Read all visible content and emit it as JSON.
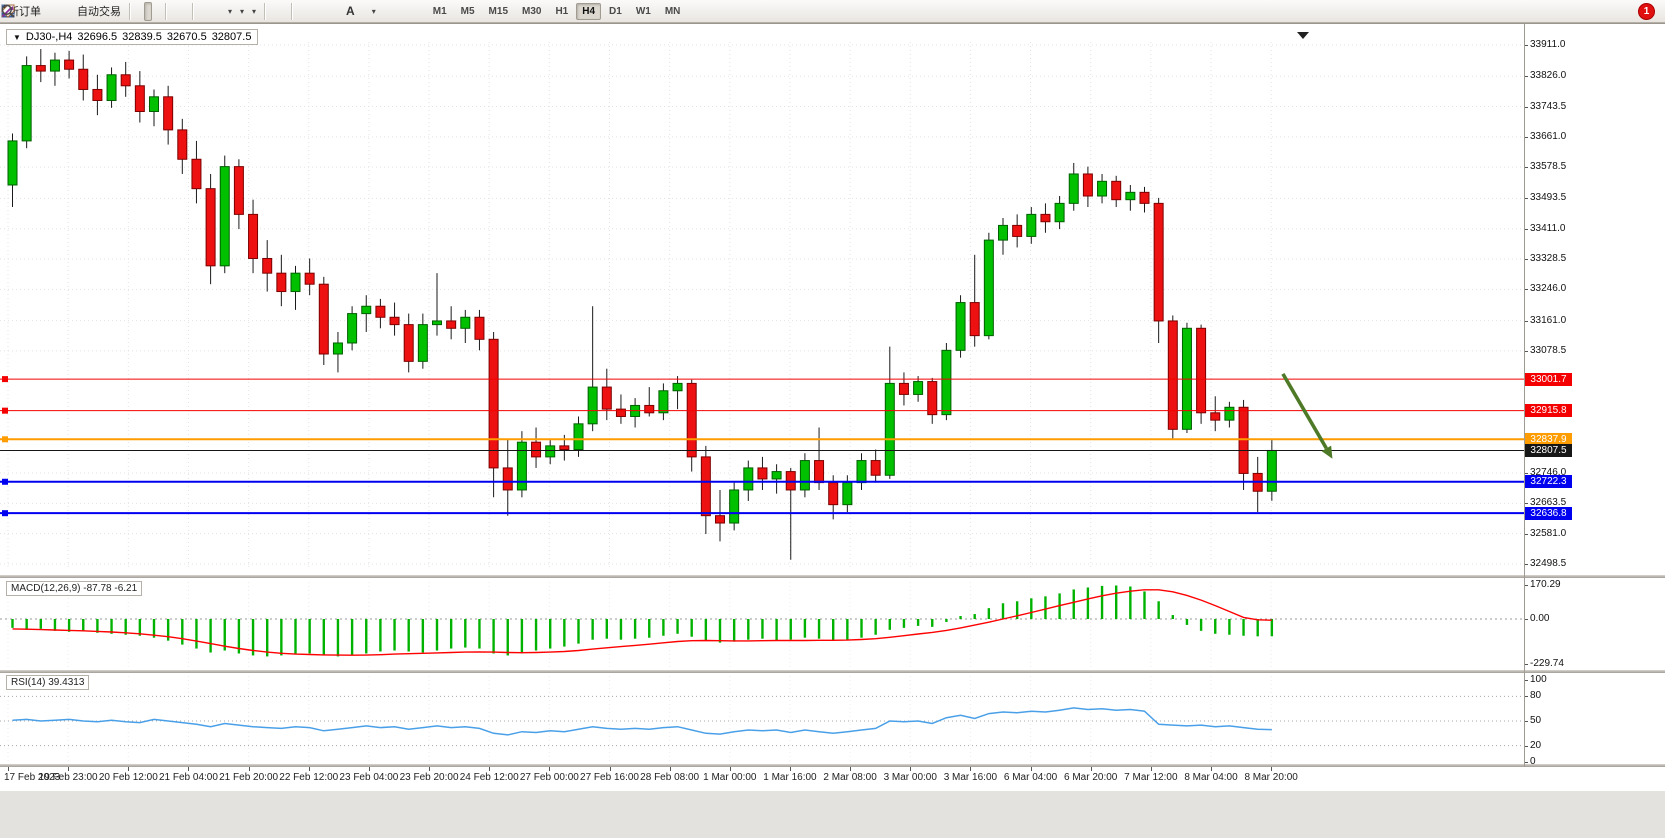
{
  "toolbar": {
    "new_order_label": "新订单",
    "auto_trading_label": "自动交易",
    "text_tool_label": "A",
    "timeframes": [
      "M1",
      "M5",
      "M15",
      "M30",
      "H1",
      "H4",
      "D1",
      "W1",
      "MN"
    ],
    "active_timeframe": "H4",
    "notification_count": "1"
  },
  "symbol_bar": {
    "symbol": "DJ30-,H4",
    "open": "32696.5",
    "high": "32839.5",
    "low": "32670.5",
    "close": "32807.5"
  },
  "price_axis": {
    "tick_labels": [
      "33911.0",
      "33826.0",
      "33743.5",
      "33661.0",
      "33578.5",
      "33493.5",
      "33411.0",
      "33328.5",
      "33246.0",
      "33161.0",
      "33078.5",
      "32746.0",
      "32663.5",
      "32581.0",
      "32498.5"
    ],
    "max_price": 33911.0,
    "min_price": 32498.5
  },
  "levels": {
    "hlines": [
      {
        "price": 33001.7,
        "label": "33001.7",
        "color": "#f40000",
        "width": 1
      },
      {
        "price": 32915.8,
        "label": "32915.8",
        "color": "#f40000",
        "width": 1
      },
      {
        "price": 32837.9,
        "label": "32837.9",
        "color": "#ff9c00",
        "width": 2
      },
      {
        "price": 32722.3,
        "label": "32722.3",
        "color": "#0000f0",
        "width": 2
      },
      {
        "price": 32636.8,
        "label": "32636.8",
        "color": "#0000f0",
        "width": 2
      }
    ],
    "current_price": {
      "price": 32807.5,
      "label": "32807.5",
      "color": "#161616"
    }
  },
  "annotation": {
    "arrow_color": "#4e7a27",
    "from": {
      "bar": 90.1,
      "price": 33016
    },
    "to": {
      "bar": 93.6,
      "price": 32785
    }
  },
  "chart_data": {
    "type": "candlestick",
    "symbol": "DJ30-",
    "timeframe": "H4",
    "colors": {
      "bull": "#00c000",
      "bear": "#ee1111",
      "wick": "#1a1a1a"
    },
    "time_labels": [
      "17 Feb 2023",
      "19 Feb 23:00",
      "20 Feb 12:00",
      "21 Feb 04:00",
      "21 Feb 20:00",
      "22 Feb 12:00",
      "23 Feb 04:00",
      "23 Feb 20:00",
      "24 Feb 12:00",
      "27 Feb 00:00",
      "27 Feb 16:00",
      "28 Feb 08:00",
      "1 Mar 00:00",
      "1 Mar 16:00",
      "2 Mar 08:00",
      "3 Mar 00:00",
      "3 Mar 16:00",
      "6 Mar 04:00",
      "6 Mar 20:00",
      "7 Mar 12:00",
      "8 Mar 04:00",
      "8 Mar 20:00"
    ],
    "candles_ohlc": [
      [
        33530,
        33670,
        33470,
        33650
      ],
      [
        33650,
        33880,
        33630,
        33855
      ],
      [
        33855,
        33900,
        33810,
        33840
      ],
      [
        33840,
        33890,
        33800,
        33870
      ],
      [
        33870,
        33895,
        33820,
        33845
      ],
      [
        33845,
        33885,
        33760,
        33790
      ],
      [
        33790,
        33830,
        33720,
        33760
      ],
      [
        33760,
        33850,
        33740,
        33830
      ],
      [
        33830,
        33865,
        33770,
        33800
      ],
      [
        33800,
        33840,
        33700,
        33730
      ],
      [
        33730,
        33790,
        33690,
        33770
      ],
      [
        33770,
        33800,
        33640,
        33680
      ],
      [
        33680,
        33710,
        33560,
        33600
      ],
      [
        33600,
        33650,
        33480,
        33520
      ],
      [
        33520,
        33560,
        33260,
        33310
      ],
      [
        33310,
        33610,
        33290,
        33580
      ],
      [
        33580,
        33600,
        33410,
        33450
      ],
      [
        33450,
        33490,
        33290,
        33330
      ],
      [
        33330,
        33380,
        33240,
        33290
      ],
      [
        33290,
        33340,
        33200,
        33240
      ],
      [
        33240,
        33310,
        33190,
        33290
      ],
      [
        33290,
        33330,
        33230,
        33260
      ],
      [
        33260,
        33280,
        33040,
        33070
      ],
      [
        33070,
        33130,
        33020,
        33100
      ],
      [
        33100,
        33200,
        33080,
        33180
      ],
      [
        33180,
        33230,
        33130,
        33200
      ],
      [
        33200,
        33220,
        33140,
        33170
      ],
      [
        33170,
        33210,
        33120,
        33150
      ],
      [
        33150,
        33180,
        33020,
        33050
      ],
      [
        33050,
        33180,
        33030,
        33150
      ],
      [
        33150,
        33290,
        33120,
        33160
      ],
      [
        33160,
        33200,
        33110,
        33140
      ],
      [
        33140,
        33190,
        33100,
        33170
      ],
      [
        33170,
        33190,
        33080,
        33110
      ],
      [
        33110,
        33130,
        32680,
        32760
      ],
      [
        32760,
        32840,
        32630,
        32700
      ],
      [
        32700,
        32860,
        32680,
        32830
      ],
      [
        32830,
        32870,
        32760,
        32790
      ],
      [
        32790,
        32840,
        32770,
        32820
      ],
      [
        32820,
        32850,
        32780,
        32810
      ],
      [
        32810,
        32900,
        32790,
        32880
      ],
      [
        32880,
        33200,
        32860,
        32980
      ],
      [
        32980,
        33030,
        32890,
        32920
      ],
      [
        32920,
        32960,
        32880,
        32900
      ],
      [
        32900,
        32950,
        32870,
        32930
      ],
      [
        32930,
        32980,
        32900,
        32910
      ],
      [
        32910,
        32990,
        32890,
        32970
      ],
      [
        32970,
        33010,
        32920,
        32990
      ],
      [
        32990,
        33000,
        32750,
        32790
      ],
      [
        32790,
        32820,
        32580,
        32630
      ],
      [
        32630,
        32700,
        32560,
        32610
      ],
      [
        32610,
        32720,
        32590,
        32700
      ],
      [
        32700,
        32780,
        32670,
        32760
      ],
      [
        32760,
        32790,
        32700,
        32730
      ],
      [
        32730,
        32770,
        32690,
        32750
      ],
      [
        32750,
        32760,
        32510,
        32700
      ],
      [
        32700,
        32800,
        32680,
        32780
      ],
      [
        32780,
        32870,
        32700,
        32720
      ],
      [
        32720,
        32740,
        32620,
        32660
      ],
      [
        32660,
        32740,
        32640,
        32720
      ],
      [
        32720,
        32800,
        32700,
        32780
      ],
      [
        32780,
        32810,
        32720,
        32740
      ],
      [
        32740,
        33090,
        32730,
        32990
      ],
      [
        32990,
        33020,
        32930,
        32960
      ],
      [
        32960,
        33010,
        32940,
        32995
      ],
      [
        32995,
        33005,
        32880,
        32905
      ],
      [
        32905,
        33100,
        32890,
        33080
      ],
      [
        33080,
        33230,
        33060,
        33210
      ],
      [
        33210,
        33340,
        33090,
        33120
      ],
      [
        33120,
        33400,
        33110,
        33380
      ],
      [
        33380,
        33440,
        33340,
        33420
      ],
      [
        33420,
        33450,
        33360,
        33390
      ],
      [
        33390,
        33470,
        33370,
        33450
      ],
      [
        33450,
        33480,
        33400,
        33430
      ],
      [
        33430,
        33500,
        33410,
        33480
      ],
      [
        33480,
        33590,
        33460,
        33560
      ],
      [
        33560,
        33580,
        33470,
        33500
      ],
      [
        33500,
        33560,
        33480,
        33540
      ],
      [
        33540,
        33555,
        33470,
        33490
      ],
      [
        33490,
        33530,
        33460,
        33510
      ],
      [
        33510,
        33525,
        33455,
        33480
      ],
      [
        33480,
        33495,
        33100,
        33160
      ],
      [
        33160,
        33175,
        32840,
        32865
      ],
      [
        32865,
        33155,
        32855,
        33140
      ],
      [
        33140,
        33150,
        32880,
        32910
      ],
      [
        32910,
        32955,
        32860,
        32890
      ],
      [
        32890,
        32940,
        32870,
        32925
      ],
      [
        32925,
        32945,
        32700,
        32745
      ],
      [
        32745,
        32790,
        32640,
        32696.5
      ],
      [
        32696.5,
        32839.5,
        32670.5,
        32807.5
      ]
    ]
  },
  "macd": {
    "label": "MACD(12,26,9) -87.78 -6.21",
    "axis_labels": [
      "170.29",
      "0.00",
      "-229.74"
    ],
    "axis_values": [
      170.29,
      0,
      -229.74
    ],
    "colors": {
      "histogram": "#00b200",
      "signal": "#ff0000"
    },
    "histogram": [
      -45,
      -55,
      -50,
      -60,
      -65,
      -60,
      -70,
      -75,
      -80,
      -85,
      -95,
      -110,
      -130,
      -150,
      -170,
      -160,
      -175,
      -185,
      -190,
      -185,
      -180,
      -175,
      -185,
      -190,
      -185,
      -175,
      -165,
      -160,
      -165,
      -170,
      -160,
      -150,
      -145,
      -150,
      -175,
      -185,
      -175,
      -160,
      -150,
      -140,
      -125,
      -105,
      -100,
      -105,
      -100,
      -95,
      -85,
      -75,
      -90,
      -110,
      -120,
      -115,
      -105,
      -100,
      -110,
      -105,
      -95,
      -100,
      -110,
      -105,
      -95,
      -80,
      -55,
      -45,
      -35,
      -40,
      -15,
      15,
      25,
      55,
      80,
      90,
      105,
      115,
      130,
      150,
      160,
      168,
      170,
      165,
      140,
      90,
      20,
      -30,
      -60,
      -75,
      -80,
      -85,
      -88,
      -87.78
    ],
    "signal": [
      -50,
      -52,
      -54,
      -56,
      -58,
      -60,
      -63,
      -66,
      -70,
      -75,
      -82,
      -90,
      -100,
      -112,
      -125,
      -138,
      -150,
      -160,
      -168,
      -174,
      -178,
      -180,
      -182,
      -183,
      -184,
      -183,
      -181,
      -178,
      -176,
      -174,
      -172,
      -170,
      -168,
      -167,
      -168,
      -170,
      -171,
      -170,
      -168,
      -165,
      -160,
      -153,
      -146,
      -140,
      -134,
      -128,
      -121,
      -114,
      -110,
      -109,
      -110,
      -111,
      -111,
      -110,
      -109,
      -109,
      -109,
      -108,
      -108,
      -107,
      -104,
      -100,
      -93,
      -85,
      -76,
      -68,
      -58,
      -45,
      -31,
      -16,
      0,
      16,
      33,
      50,
      68,
      85,
      102,
      118,
      131,
      141,
      148,
      148,
      138,
      120,
      96,
      68,
      38,
      8,
      -4,
      -6.21
    ]
  },
  "rsi": {
    "label": "RSI(14) 39.4313",
    "axis_labels": [
      "100",
      "80",
      "50",
      "20",
      "0"
    ],
    "axis_values": [
      100,
      80,
      50,
      20,
      0
    ],
    "levels": [
      80,
      50,
      20
    ],
    "color": "#4aa0e8",
    "values": [
      51,
      52,
      50,
      51,
      52,
      50,
      49,
      51,
      49,
      48,
      52,
      50,
      48,
      46,
      43,
      47,
      45,
      43,
      42,
      41,
      43,
      42,
      38,
      40,
      42,
      44,
      42,
      43,
      40,
      42,
      44,
      42,
      43,
      41,
      35,
      33,
      37,
      36,
      38,
      37,
      40,
      43,
      41,
      40,
      41,
      40,
      42,
      43,
      39,
      35,
      34,
      37,
      39,
      38,
      39,
      36,
      39,
      37,
      35,
      37,
      39,
      41,
      50,
      49,
      50,
      47,
      54,
      57,
      53,
      59,
      61,
      60,
      62,
      61,
      63,
      66,
      64,
      65,
      63,
      64,
      62,
      46,
      45,
      44,
      45,
      43,
      44,
      42,
      40,
      39.43
    ]
  }
}
